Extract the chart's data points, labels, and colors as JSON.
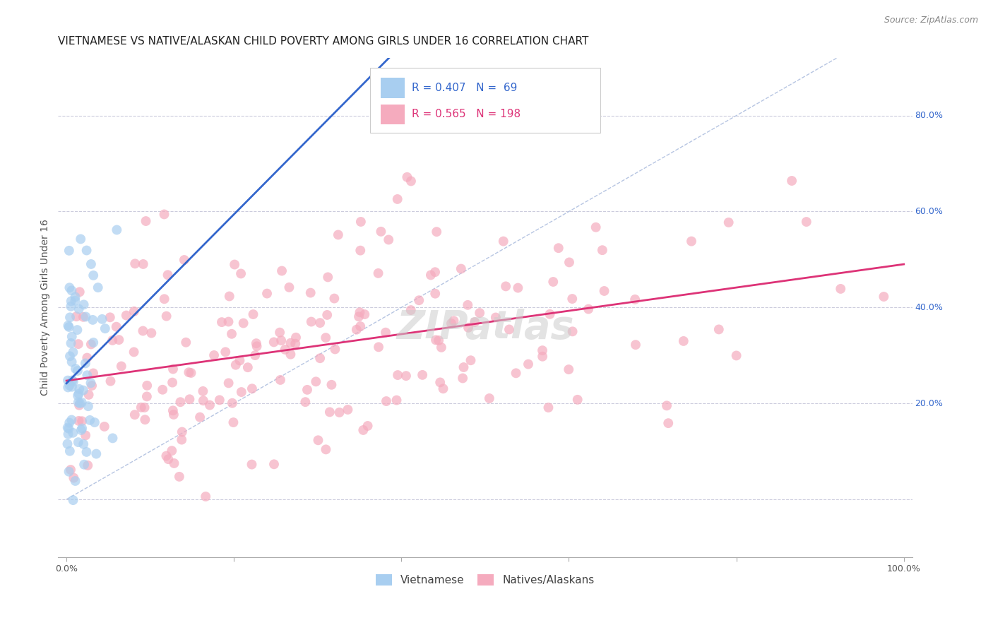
{
  "title": "VIETNAMESE VS NATIVE/ALASKAN CHILD POVERTY AMONG GIRLS UNDER 16 CORRELATION CHART",
  "source": "Source: ZipAtlas.com",
  "ylabel": "Child Poverty Among Girls Under 16",
  "viet_R": 0.407,
  "viet_N": 69,
  "native_R": 0.565,
  "native_N": 198,
  "viet_color": "#A8CEF0",
  "native_color": "#F5ABBE",
  "viet_line_color": "#3366CC",
  "native_line_color": "#DD3377",
  "diagonal_color": "#AABBDD",
  "background_color": "#FFFFFF",
  "grid_color": "#CCCCDD",
  "title_fontsize": 11,
  "source_fontsize": 9,
  "axis_label_fontsize": 10,
  "tick_fontsize": 9,
  "legend_fontsize": 11,
  "watermark_color": "#CCCCCC",
  "watermark_fontsize": 40
}
